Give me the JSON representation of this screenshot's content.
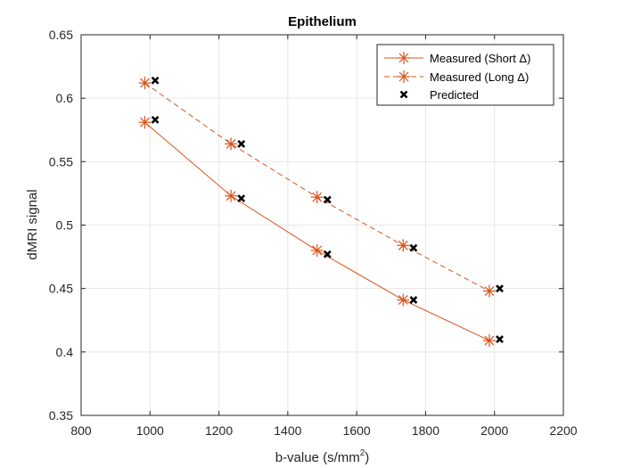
{
  "chart_data": {
    "type": "line",
    "title": "Epithelium",
    "xlabel_base": "b-value (s/mm",
    "xlabel_sup": "2",
    "xlabel_tail": ")",
    "ylabel": "dMRI signal",
    "xlim": [
      800,
      2200
    ],
    "ylim": [
      0.35,
      0.65
    ],
    "xticks": [
      800,
      1000,
      1200,
      1400,
      1600,
      1800,
      2000,
      2200
    ],
    "xtick_labels": [
      "800",
      "1000",
      "1200",
      "1400",
      "1600",
      "1800",
      "2000",
      "2200"
    ],
    "yticks": [
      0.35,
      0.4,
      0.45,
      0.5,
      0.55,
      0.6,
      0.65
    ],
    "ytick_labels": [
      "0.35",
      "0.4",
      "0.45",
      "0.5",
      "0.55",
      "0.6",
      "0.65"
    ],
    "grid": true,
    "legend_position": "top-right",
    "series": [
      {
        "name": "Measured (Short Δ)",
        "style": "solid",
        "marker": "asterisk",
        "color": "#D95319",
        "x": [
          985,
          1235,
          1485,
          1735,
          1985
        ],
        "y": [
          0.581,
          0.523,
          0.48,
          0.441,
          0.409
        ]
      },
      {
        "name": "Measured (Long Δ)",
        "style": "dashed",
        "marker": "asterisk",
        "color": "#D95319",
        "x": [
          985,
          1235,
          1485,
          1735,
          1985
        ],
        "y": [
          0.612,
          0.564,
          0.522,
          0.484,
          0.448
        ]
      },
      {
        "name": "Predicted",
        "style": "none",
        "marker": "x",
        "color": "#000000",
        "x": [
          1015,
          1265,
          1515,
          1765,
          2015,
          1015,
          1265,
          1515,
          1765,
          2015
        ],
        "y": [
          0.583,
          0.521,
          0.477,
          0.441,
          0.41,
          0.614,
          0.564,
          0.52,
          0.482,
          0.45
        ]
      }
    ]
  }
}
